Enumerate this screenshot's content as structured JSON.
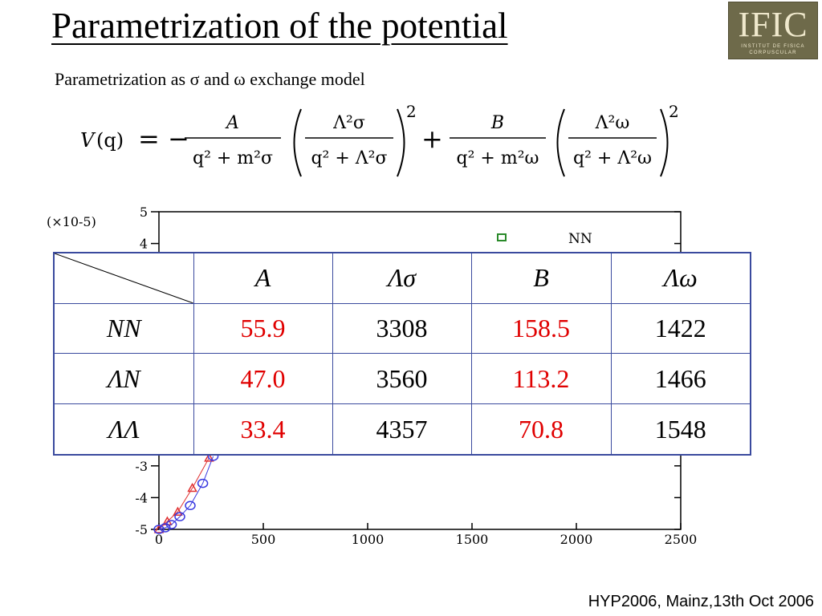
{
  "title": "Parametrization of the potential",
  "subtitle": "Parametrization as σ and ω exchange model",
  "logo": {
    "main": "IFIC",
    "line1": "INSTITUT DE FISICA",
    "line2": "CORPUSCULAR"
  },
  "equation": {
    "lhs_v": "V",
    "lhs_q": "(q)",
    "eq_sign": "= −",
    "num_a": "A",
    "den_a": "q² + m²σ",
    "big_num_sigma": "Λ²σ",
    "big_den_sigma": "q² + Λ²σ",
    "plus": "+",
    "num_b": "B",
    "den_b": "q² + m²ω",
    "big_num_omega": "Λ²ω",
    "big_den_omega": "q² + Λ²ω",
    "power": "2"
  },
  "chart_data": {
    "type": "scatter",
    "y_multiplier_label": "(×10-5)",
    "x_ticks": [
      "0",
      "500",
      "1000",
      "1500",
      "2000",
      "2500"
    ],
    "y_ticks": [
      "5",
      "4",
      "-3",
      "-4",
      "-5"
    ],
    "xlim": [
      0,
      2500
    ],
    "ylim": [
      -5,
      5
    ],
    "legend": [
      {
        "name": "NN",
        "marker": "square",
        "color": "#2a8a2a"
      }
    ],
    "series": [
      {
        "marker": "triangle",
        "color": "#e03030",
        "x": [
          0,
          40,
          90,
          160,
          240
        ],
        "y": [
          -5.0,
          -4.75,
          -4.45,
          -3.7,
          -2.75
        ]
      },
      {
        "marker": "circle",
        "color": "#3a3ae0",
        "x": [
          0,
          30,
          60,
          100,
          150,
          210,
          260
        ],
        "y": [
          -5.0,
          -4.95,
          -4.85,
          -4.6,
          -4.25,
          -3.55,
          -2.7
        ]
      }
    ]
  },
  "table": {
    "headers": [
      "A",
      "Λσ",
      "B",
      "Λω"
    ],
    "rows": [
      {
        "label": "NN",
        "values": [
          "55.9",
          "3308",
          "158.5",
          "1422"
        ]
      },
      {
        "label": "ΛN",
        "values": [
          "47.0",
          "3560",
          "113.2",
          "1466"
        ]
      },
      {
        "label": "ΛΛ",
        "values": [
          "33.4",
          "4357",
          "70.8",
          "1548"
        ]
      }
    ]
  },
  "footer": "HYP2006, Mainz,13th Oct 2006",
  "colors": {
    "red_value": "#e00000",
    "table_border": "#3a4a9e",
    "logo_bg": "#6e6a4a"
  }
}
